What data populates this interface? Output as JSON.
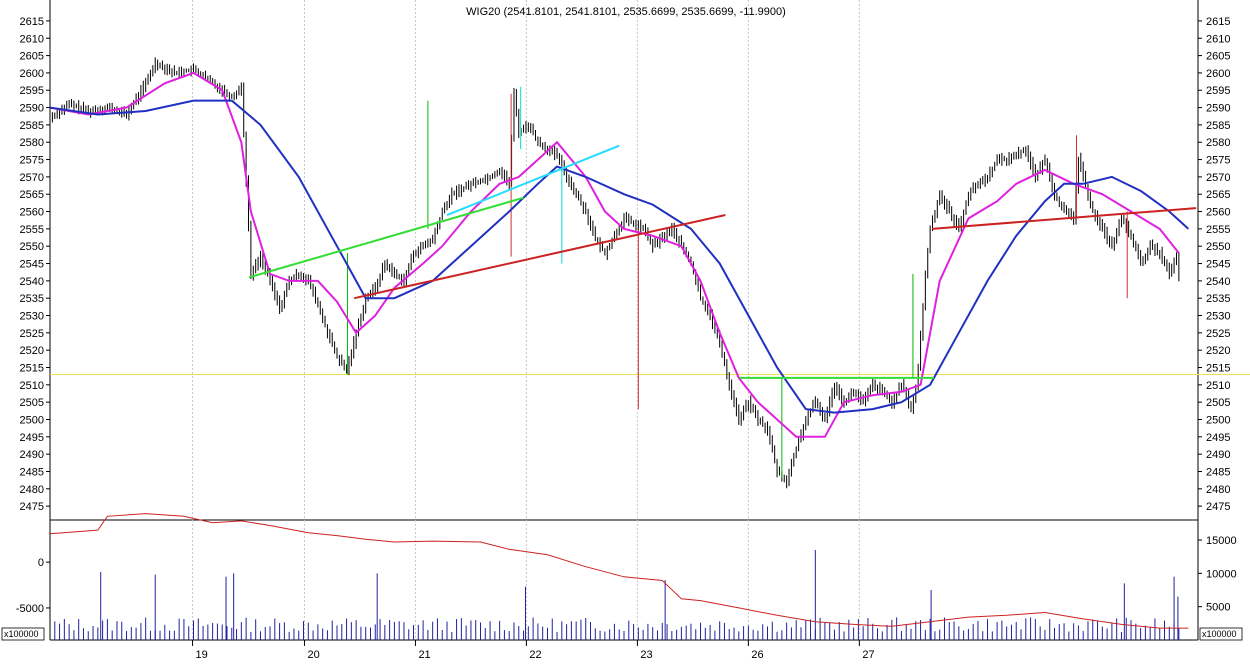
{
  "chart_data": {
    "type": "candlestick",
    "title": "WIG20 (2541.8101, 2541.8101, 2535.6699, 2535.6699, -11.9900)",
    "price_panel": {
      "ylim": [
        2471,
        2617
      ],
      "y_ticks": [
        2475,
        2480,
        2485,
        2490,
        2495,
        2500,
        2505,
        2510,
        2515,
        2520,
        2525,
        2530,
        2535,
        2540,
        2545,
        2550,
        2555,
        2560,
        2565,
        2570,
        2575,
        2580,
        2585,
        2590,
        2595,
        2600,
        2605,
        2610,
        2615
      ],
      "x_ticks": [
        "19",
        "20",
        "21",
        "22",
        "23",
        "26",
        "27"
      ],
      "grid": true,
      "horizontal_line": {
        "value": 2513,
        "color": "#f0e050"
      },
      "close_path": [
        [
          0,
          2587
        ],
        [
          2,
          2591
        ],
        [
          4,
          2589
        ],
        [
          6,
          2590
        ],
        [
          8,
          2588
        ],
        [
          10,
          2597
        ],
        [
          11,
          2603
        ],
        [
          13,
          2600
        ],
        [
          15,
          2601
        ],
        [
          17,
          2597
        ],
        [
          19,
          2593
        ],
        [
          20,
          2596
        ],
        [
          21,
          2542
        ],
        [
          22,
          2547
        ],
        [
          23,
          2540
        ],
        [
          24,
          2532
        ],
        [
          25,
          2540
        ],
        [
          26,
          2542
        ],
        [
          27,
          2540
        ],
        [
          28,
          2533
        ],
        [
          29,
          2525
        ],
        [
          30,
          2518
        ],
        [
          31,
          2514
        ],
        [
          32,
          2525
        ],
        [
          33,
          2535
        ],
        [
          34,
          2538
        ],
        [
          35,
          2545
        ],
        [
          36,
          2542
        ],
        [
          37,
          2540
        ],
        [
          38,
          2548
        ],
        [
          40,
          2552
        ],
        [
          41,
          2560
        ],
        [
          42,
          2565
        ],
        [
          44,
          2568
        ],
        [
          46,
          2570
        ],
        [
          47,
          2572
        ],
        [
          48,
          2568
        ],
        [
          48.5,
          2594
        ],
        [
          49,
          2583
        ],
        [
          50,
          2585
        ],
        [
          51,
          2580
        ],
        [
          52,
          2578
        ],
        [
          53,
          2576
        ],
        [
          54,
          2570
        ],
        [
          56,
          2560
        ],
        [
          57,
          2552
        ],
        [
          58,
          2548
        ],
        [
          60,
          2558
        ],
        [
          62,
          2555
        ],
        [
          63,
          2550
        ],
        [
          65,
          2555
        ],
        [
          66,
          2550
        ],
        [
          67,
          2545
        ],
        [
          68,
          2535
        ],
        [
          69,
          2530
        ],
        [
          70,
          2522
        ],
        [
          71,
          2510
        ],
        [
          72,
          2500
        ],
        [
          73,
          2505
        ],
        [
          74,
          2500
        ],
        [
          75,
          2497
        ],
        [
          76,
          2485
        ],
        [
          77,
          2482
        ],
        [
          77.8,
          2490
        ],
        [
          79,
          2500
        ],
        [
          80,
          2505
        ],
        [
          81,
          2500
        ],
        [
          82,
          2510
        ],
        [
          83,
          2505
        ],
        [
          84,
          2508
        ],
        [
          85,
          2505
        ],
        [
          86,
          2510
        ],
        [
          87,
          2508
        ],
        [
          88,
          2505
        ],
        [
          89,
          2510
        ],
        [
          90,
          2503
        ],
        [
          90.6,
          2510
        ],
        [
          91.6,
          2545
        ],
        [
          92,
          2555
        ],
        [
          93,
          2565
        ],
        [
          94,
          2560
        ],
        [
          95,
          2555
        ],
        [
          96,
          2565
        ],
        [
          97,
          2568
        ],
        [
          98,
          2570
        ],
        [
          99,
          2575
        ],
        [
          100,
          2575
        ],
        [
          102,
          2578
        ],
        [
          103,
          2570
        ],
        [
          104,
          2575
        ],
        [
          105,
          2565
        ],
        [
          106,
          2560
        ],
        [
          107,
          2558
        ],
        [
          107.5,
          2575
        ],
        [
          108,
          2570
        ],
        [
          109,
          2560
        ],
        [
          110,
          2555
        ],
        [
          111,
          2550
        ],
        [
          112,
          2558
        ],
        [
          113,
          2553
        ],
        [
          114,
          2545
        ],
        [
          115,
          2550
        ],
        [
          116,
          2548
        ],
        [
          117,
          2542
        ],
        [
          117.8,
          2547
        ],
        [
          118.2,
          2536
        ]
      ],
      "wick_spikes": [
        {
          "x": 39.5,
          "low": 2555,
          "high": 2592,
          "color": "#00bb00"
        },
        {
          "x": 31.1,
          "low": 2513,
          "high": 2548,
          "color": "#00bb00"
        },
        {
          "x": 48.2,
          "low": 2547,
          "high": 2594,
          "color": "#cc3333"
        },
        {
          "x": 49.2,
          "low": 2578,
          "high": 2596,
          "color": "#00dddd"
        },
        {
          "x": 53.5,
          "low": 2545,
          "high": 2573,
          "color": "#00dddd"
        },
        {
          "x": 61.5,
          "low": 2503,
          "high": 2555,
          "color": "#cc3333"
        },
        {
          "x": 76.5,
          "low": 2483,
          "high": 2512,
          "color": "#00bb00"
        },
        {
          "x": 90.2,
          "low": 2512,
          "high": 2542,
          "color": "#00bb00"
        },
        {
          "x": 107.3,
          "low": 2558,
          "high": 2582,
          "color": "#cc3333"
        },
        {
          "x": 112.6,
          "low": 2535,
          "high": 2560,
          "color": "#cc3333"
        }
      ],
      "moving_averages": [
        {
          "color": "#e020e0",
          "points": [
            [
              0,
              2590
            ],
            [
              4,
              2588
            ],
            [
              8,
              2590
            ],
            [
              12,
              2597
            ],
            [
              15,
              2600
            ],
            [
              18,
              2595
            ],
            [
              20,
              2580
            ],
            [
              21,
              2560
            ],
            [
              23,
              2542
            ],
            [
              25,
              2540
            ],
            [
              28,
              2540
            ],
            [
              30,
              2534
            ],
            [
              32,
              2525
            ],
            [
              34,
              2530
            ],
            [
              36,
              2538
            ],
            [
              39,
              2545
            ],
            [
              41,
              2550
            ],
            [
              44,
              2560
            ],
            [
              47,
              2568
            ],
            [
              49,
              2570
            ],
            [
              51,
              2575
            ],
            [
              53,
              2580
            ],
            [
              56,
              2570
            ],
            [
              58,
              2560
            ],
            [
              60,
              2555
            ],
            [
              63,
              2553
            ],
            [
              66,
              2550
            ],
            [
              68,
              2540
            ],
            [
              70,
              2525
            ],
            [
              72,
              2512
            ],
            [
              74,
              2505
            ],
            [
              76,
              2500
            ],
            [
              78,
              2495
            ],
            [
              81,
              2495
            ],
            [
              83,
              2505
            ],
            [
              86,
              2507
            ],
            [
              89,
              2508
            ],
            [
              91,
              2510
            ],
            [
              93,
              2540
            ],
            [
              96,
              2558
            ],
            [
              99,
              2563
            ],
            [
              101,
              2568
            ],
            [
              104,
              2572
            ],
            [
              107,
              2568
            ],
            [
              110,
              2565
            ],
            [
              113,
              2560
            ],
            [
              116,
              2555
            ],
            [
              118,
              2548
            ]
          ]
        },
        {
          "color": "#2030c0",
          "points": [
            [
              0,
              2590
            ],
            [
              5,
              2588
            ],
            [
              10,
              2589
            ],
            [
              15,
              2592
            ],
            [
              19,
              2592
            ],
            [
              22,
              2585
            ],
            [
              26,
              2570
            ],
            [
              30,
              2550
            ],
            [
              33,
              2535
            ],
            [
              36,
              2535
            ],
            [
              40,
              2540
            ],
            [
              44,
              2550
            ],
            [
              48,
              2560
            ],
            [
              51,
              2568
            ],
            [
              53,
              2573
            ],
            [
              56,
              2570
            ],
            [
              60,
              2565
            ],
            [
              63,
              2562
            ],
            [
              67,
              2555
            ],
            [
              70,
              2545
            ],
            [
              73,
              2530
            ],
            [
              76,
              2515
            ],
            [
              79,
              2503
            ],
            [
              82,
              2502
            ],
            [
              86,
              2503
            ],
            [
              89,
              2505
            ],
            [
              92,
              2510
            ],
            [
              95,
              2525
            ],
            [
              98,
              2540
            ],
            [
              101,
              2553
            ],
            [
              104,
              2563
            ],
            [
              106,
              2568
            ],
            [
              108,
              2568
            ],
            [
              111,
              2570
            ],
            [
              114,
              2566
            ],
            [
              117,
              2560
            ],
            [
              119,
              2555
            ]
          ]
        }
      ],
      "trendlines": [
        {
          "color": "#33dd33",
          "x1": 20.8,
          "y1": 2541,
          "x2": 49.5,
          "y2": 2564
        },
        {
          "color": "#22ddff",
          "x1": 41.5,
          "y1": 2559,
          "x2": 59.5,
          "y2": 2579
        },
        {
          "color": "#cc2222",
          "x1": 31.8,
          "y1": 2535,
          "x2": 70.6,
          "y2": 2559
        },
        {
          "color": "#33dd33",
          "x1": 72.1,
          "y1": 2512,
          "x2": 92.4,
          "y2": 2512
        },
        {
          "color": "#cc2222",
          "x1": 92.2,
          "y1": 2555,
          "x2": 119.8,
          "y2": 2561
        }
      ]
    },
    "volume_panel": {
      "left_ticks": [
        {
          "label": "0",
          "value": 0
        },
        {
          "label": "-5000",
          "value": -5000
        }
      ],
      "right_ticks": [
        {
          "label": "15000",
          "value": 15000
        },
        {
          "label": "10000",
          "value": 10000
        },
        {
          "label": "5000",
          "value": 5000
        }
      ],
      "unit_label": "x100000",
      "osc_ylim": [
        -8500,
        4600
      ],
      "vol_ylim": [
        0,
        18000
      ],
      "volume_spikes": [
        [
          5.3,
          10200
        ],
        [
          11,
          9800
        ],
        [
          18.4,
          9500
        ],
        [
          19.2,
          10000
        ],
        [
          34.2,
          10000
        ],
        [
          49.7,
          8000
        ],
        [
          64.3,
          9000
        ],
        [
          80,
          13500
        ],
        [
          92.1,
          7500
        ],
        [
          112.3,
          8500
        ],
        [
          117.5,
          9500
        ],
        [
          117.9,
          6500
        ]
      ],
      "oscillator": [
        [
          0,
          3100
        ],
        [
          5,
          3500
        ],
        [
          6,
          5000
        ],
        [
          10,
          5300
        ],
        [
          14,
          5000
        ],
        [
          17,
          4300
        ],
        [
          20,
          4500
        ],
        [
          23,
          4000
        ],
        [
          27,
          3200
        ],
        [
          30,
          2900
        ],
        [
          33,
          2500
        ],
        [
          36,
          2200
        ],
        [
          40,
          2300
        ],
        [
          45,
          2200
        ],
        [
          48,
          1400
        ],
        [
          52,
          800
        ],
        [
          56,
          -500
        ],
        [
          60,
          -1600
        ],
        [
          64,
          -2000
        ],
        [
          66,
          -4000
        ],
        [
          68,
          -4200
        ],
        [
          72,
          -5000
        ],
        [
          76,
          -5800
        ],
        [
          80,
          -6500
        ],
        [
          84,
          -6800
        ],
        [
          88,
          -7000
        ],
        [
          92,
          -6500
        ],
        [
          96,
          -6000
        ],
        [
          100,
          -5800
        ],
        [
          104,
          -5500
        ],
        [
          108,
          -6200
        ],
        [
          112,
          -6800
        ],
        [
          116,
          -7200
        ],
        [
          119,
          -7200
        ]
      ]
    }
  }
}
